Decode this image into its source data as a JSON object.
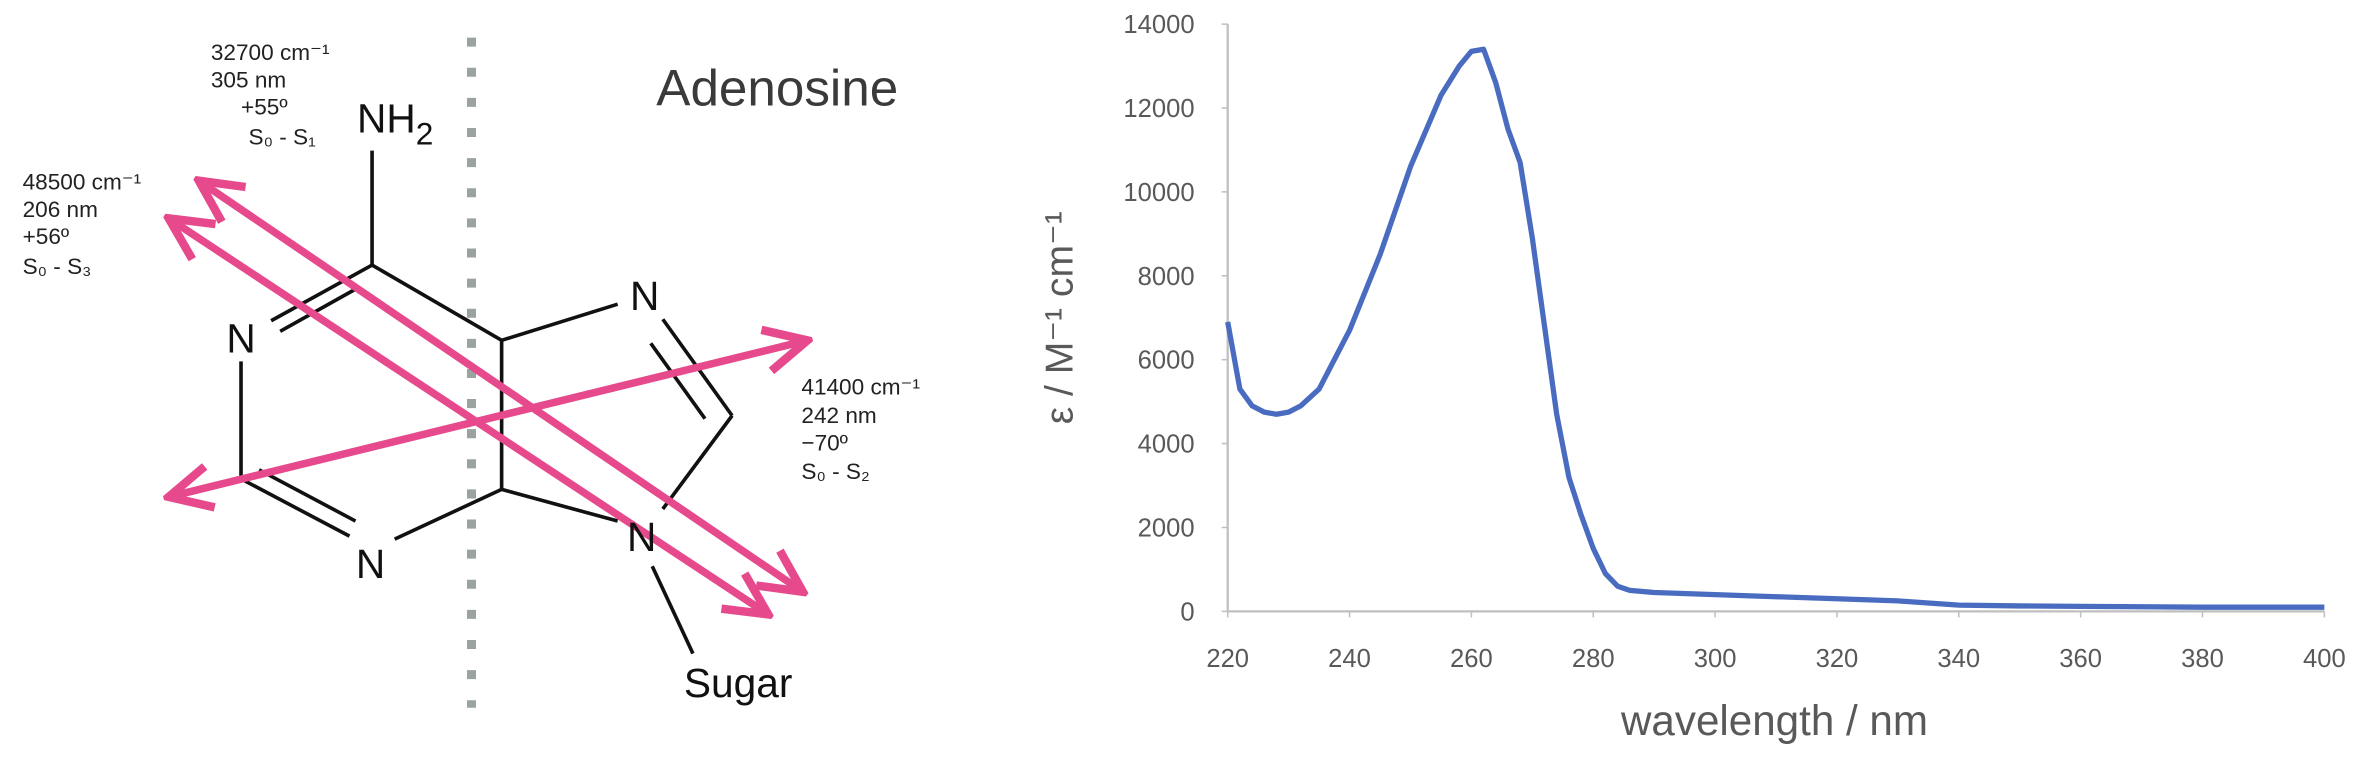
{
  "diagram": {
    "title": "Adenosine",
    "nh2": {
      "main": "NH",
      "sub": "2"
    },
    "atoms": [
      "N",
      "N",
      "N",
      "N"
    ],
    "sugar": "Sugar",
    "annotations": [
      [
        "32700 cm⁻¹",
        "305 nm",
        "+55º",
        "S₀ - S₁"
      ],
      [
        "48500 cm⁻¹",
        "206 nm",
        "+56º",
        "S₀ - S₃"
      ],
      [
        "41400 cm⁻¹",
        "242 nm",
        "−70º",
        "S₀ - S₂"
      ]
    ]
  },
  "chart_data": {
    "type": "line",
    "x_label": "wavelength / nm",
    "y_label": "ε / M⁻¹ cm⁻¹",
    "x": [
      220,
      222,
      224,
      226,
      228,
      230,
      232,
      235,
      240,
      245,
      250,
      255,
      258,
      260,
      262,
      264,
      266,
      268,
      270,
      272,
      274,
      276,
      278,
      280,
      282,
      284,
      286,
      290,
      300,
      310,
      320,
      330,
      340,
      350,
      360,
      370,
      380,
      390,
      400
    ],
    "series": [
      {
        "name": "Adenosine",
        "color": "#4a6cc0",
        "values": [
          6900,
          5300,
          4900,
          4750,
          4700,
          4750,
          4900,
          5300,
          6700,
          8500,
          10600,
          12300,
          13000,
          13350,
          13400,
          12600,
          11500,
          10700,
          8900,
          6800,
          4700,
          3200,
          2300,
          1500,
          900,
          600,
          500,
          450,
          400,
          350,
          300,
          250,
          150,
          130,
          120,
          110,
          100,
          100,
          100
        ]
      }
    ],
    "xlim": [
      220,
      400
    ],
    "xticks": [
      220,
      240,
      260,
      280,
      300,
      320,
      340,
      360,
      380,
      400
    ],
    "ylim": [
      0,
      14000
    ],
    "yticks": [
      0,
      2000,
      4000,
      6000,
      8000,
      10000,
      12000,
      14000
    ],
    "grid": false
  }
}
